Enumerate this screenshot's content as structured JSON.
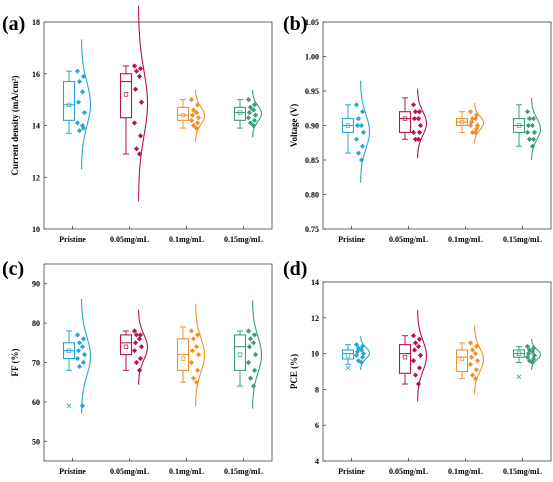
{
  "colors": [
    "#2aa6d6",
    "#b5154b",
    "#f0902a",
    "#3a9e7b"
  ],
  "chart_data": [
    {
      "panel_label": "(a)",
      "type": "box",
      "ylabel": "Current density (mA/cm²)",
      "ylim": [
        10,
        18
      ],
      "yticks": [
        10,
        12,
        14,
        16,
        18
      ],
      "categories": [
        "Pristine",
        "0.05mg/mL",
        "0.1mg/mL",
        "0.15mg/mL"
      ],
      "series": [
        {
          "box": [
            14.2,
            14.8,
            15.7
          ],
          "whisker": [
            13.7,
            16.1
          ],
          "mean": 14.8,
          "points": [
            16.1,
            15.9,
            15.7,
            15.3,
            14.9,
            14.5,
            14.1,
            13.9,
            13.8,
            14.0
          ]
        },
        {
          "box": [
            14.3,
            15.7,
            16.0
          ],
          "whisker": [
            12.9,
            16.3
          ],
          "mean": 15.2,
          "points": [
            16.3,
            16.2,
            16.1,
            15.9,
            15.4,
            14.9,
            14.1,
            13.6,
            13.1,
            12.9
          ]
        },
        {
          "box": [
            14.2,
            14.4,
            14.7
          ],
          "whisker": [
            13.9,
            15.0
          ],
          "mean": 14.4,
          "points": [
            15.0,
            14.8,
            14.6,
            14.5,
            14.4,
            14.3,
            14.2,
            14.1,
            14.0,
            13.9
          ]
        },
        {
          "box": [
            14.2,
            14.5,
            14.7
          ],
          "whisker": [
            13.9,
            15.0
          ],
          "mean": 14.5,
          "points": [
            15.0,
            14.8,
            14.7,
            14.6,
            14.5,
            14.4,
            14.3,
            14.2,
            14.1,
            14.0
          ]
        }
      ]
    },
    {
      "panel_label": "(b)",
      "type": "box",
      "ylabel": "Voltage (V)",
      "ylim": [
        0.75,
        1.05
      ],
      "yticks": [
        "0.75",
        "0.80",
        "0.85",
        "0.90",
        "0.95",
        "1.00",
        "1.05"
      ],
      "categories": [
        "Pristine",
        "0.05mg/mL",
        "0.1mg/mL",
        "0.15mg/mL"
      ],
      "series": [
        {
          "box": [
            0.89,
            0.9,
            0.91
          ],
          "whisker": [
            0.86,
            0.93
          ],
          "mean": 0.9,
          "points": [
            0.93,
            0.92,
            0.91,
            0.9,
            0.9,
            0.89,
            0.88,
            0.87,
            0.86,
            0.85
          ]
        },
        {
          "box": [
            0.89,
            0.91,
            0.92
          ],
          "whisker": [
            0.88,
            0.94
          ],
          "mean": 0.91,
          "points": [
            0.93,
            0.92,
            0.92,
            0.91,
            0.91,
            0.9,
            0.89,
            0.89,
            0.88,
            0.88
          ]
        },
        {
          "box": [
            0.9,
            0.905,
            0.91
          ],
          "whisker": [
            0.89,
            0.92
          ],
          "mean": 0.905,
          "points": [
            0.92,
            0.915,
            0.91,
            0.91,
            0.905,
            0.9,
            0.9,
            0.895,
            0.89,
            0.89
          ]
        },
        {
          "box": [
            0.89,
            0.9,
            0.91
          ],
          "whisker": [
            0.87,
            0.93
          ],
          "mean": 0.9,
          "points": [
            0.92,
            0.91,
            0.91,
            0.9,
            0.9,
            0.89,
            0.89,
            0.88,
            0.88,
            0.87
          ]
        }
      ]
    },
    {
      "panel_label": "(c)",
      "type": "box",
      "ylabel": "FF (%)",
      "ylim": [
        45,
        95
      ],
      "yticks": [
        50,
        60,
        70,
        80,
        90
      ],
      "categories": [
        "Pristine",
        "0.05mg/mL",
        "0.1mg/mL",
        "0.15mg/mL"
      ],
      "series": [
        {
          "box": [
            71,
            73,
            75
          ],
          "whisker": [
            68,
            78
          ],
          "mean": 73,
          "outlier": 59,
          "points": [
            77,
            76,
            75,
            74,
            73,
            72,
            71,
            70,
            69,
            59
          ]
        },
        {
          "box": [
            72,
            75,
            77
          ],
          "whisker": [
            68,
            78
          ],
          "mean": 74,
          "points": [
            78,
            77,
            77,
            76,
            75,
            74,
            73,
            71,
            70,
            68
          ]
        },
        {
          "box": [
            68,
            72,
            76
          ],
          "whisker": [
            65,
            79
          ],
          "mean": 71,
          "points": [
            78,
            77,
            76,
            74,
            73,
            72,
            70,
            68,
            66,
            65
          ]
        },
        {
          "box": [
            68,
            74,
            77
          ],
          "whisker": [
            64,
            78
          ],
          "mean": 72,
          "points": [
            78,
            77,
            76,
            75,
            74,
            72,
            70,
            68,
            66,
            64
          ]
        }
      ]
    },
    {
      "panel_label": "(d)",
      "type": "box",
      "ylabel": "PCE (%)",
      "ylim": [
        4,
        14
      ],
      "yticks": [
        4,
        6,
        8,
        10,
        12,
        14
      ],
      "categories": [
        "Pristine",
        "0.05mg/mL",
        "0.1mg/mL",
        "0.15mg/mL"
      ],
      "series": [
        {
          "box": [
            9.7,
            10.0,
            10.2
          ],
          "whisker": [
            9.4,
            10.5
          ],
          "mean": 9.9,
          "outlier": 9.2,
          "points": [
            10.5,
            10.4,
            10.3,
            10.2,
            10.1,
            10.0,
            9.9,
            9.8,
            9.6,
            9.5
          ]
        },
        {
          "box": [
            8.9,
            10.0,
            10.5
          ],
          "whisker": [
            8.3,
            11.0
          ],
          "mean": 9.8,
          "points": [
            11.0,
            10.8,
            10.6,
            10.4,
            10.2,
            9.9,
            9.6,
            9.2,
            8.8,
            8.3
          ]
        },
        {
          "box": [
            9.0,
            9.8,
            10.2
          ],
          "whisker": [
            8.6,
            10.6
          ],
          "mean": 9.7,
          "points": [
            10.6,
            10.4,
            10.2,
            10.0,
            9.8,
            9.6,
            9.4,
            9.1,
            8.8,
            8.6
          ]
        },
        {
          "box": [
            9.8,
            10.0,
            10.2
          ],
          "whisker": [
            9.5,
            10.4
          ],
          "mean": 10.0,
          "outlier": 8.7,
          "points": [
            10.4,
            10.3,
            10.2,
            10.1,
            10.0,
            9.9,
            9.8,
            9.7,
            9.6,
            9.5
          ]
        }
      ]
    }
  ]
}
